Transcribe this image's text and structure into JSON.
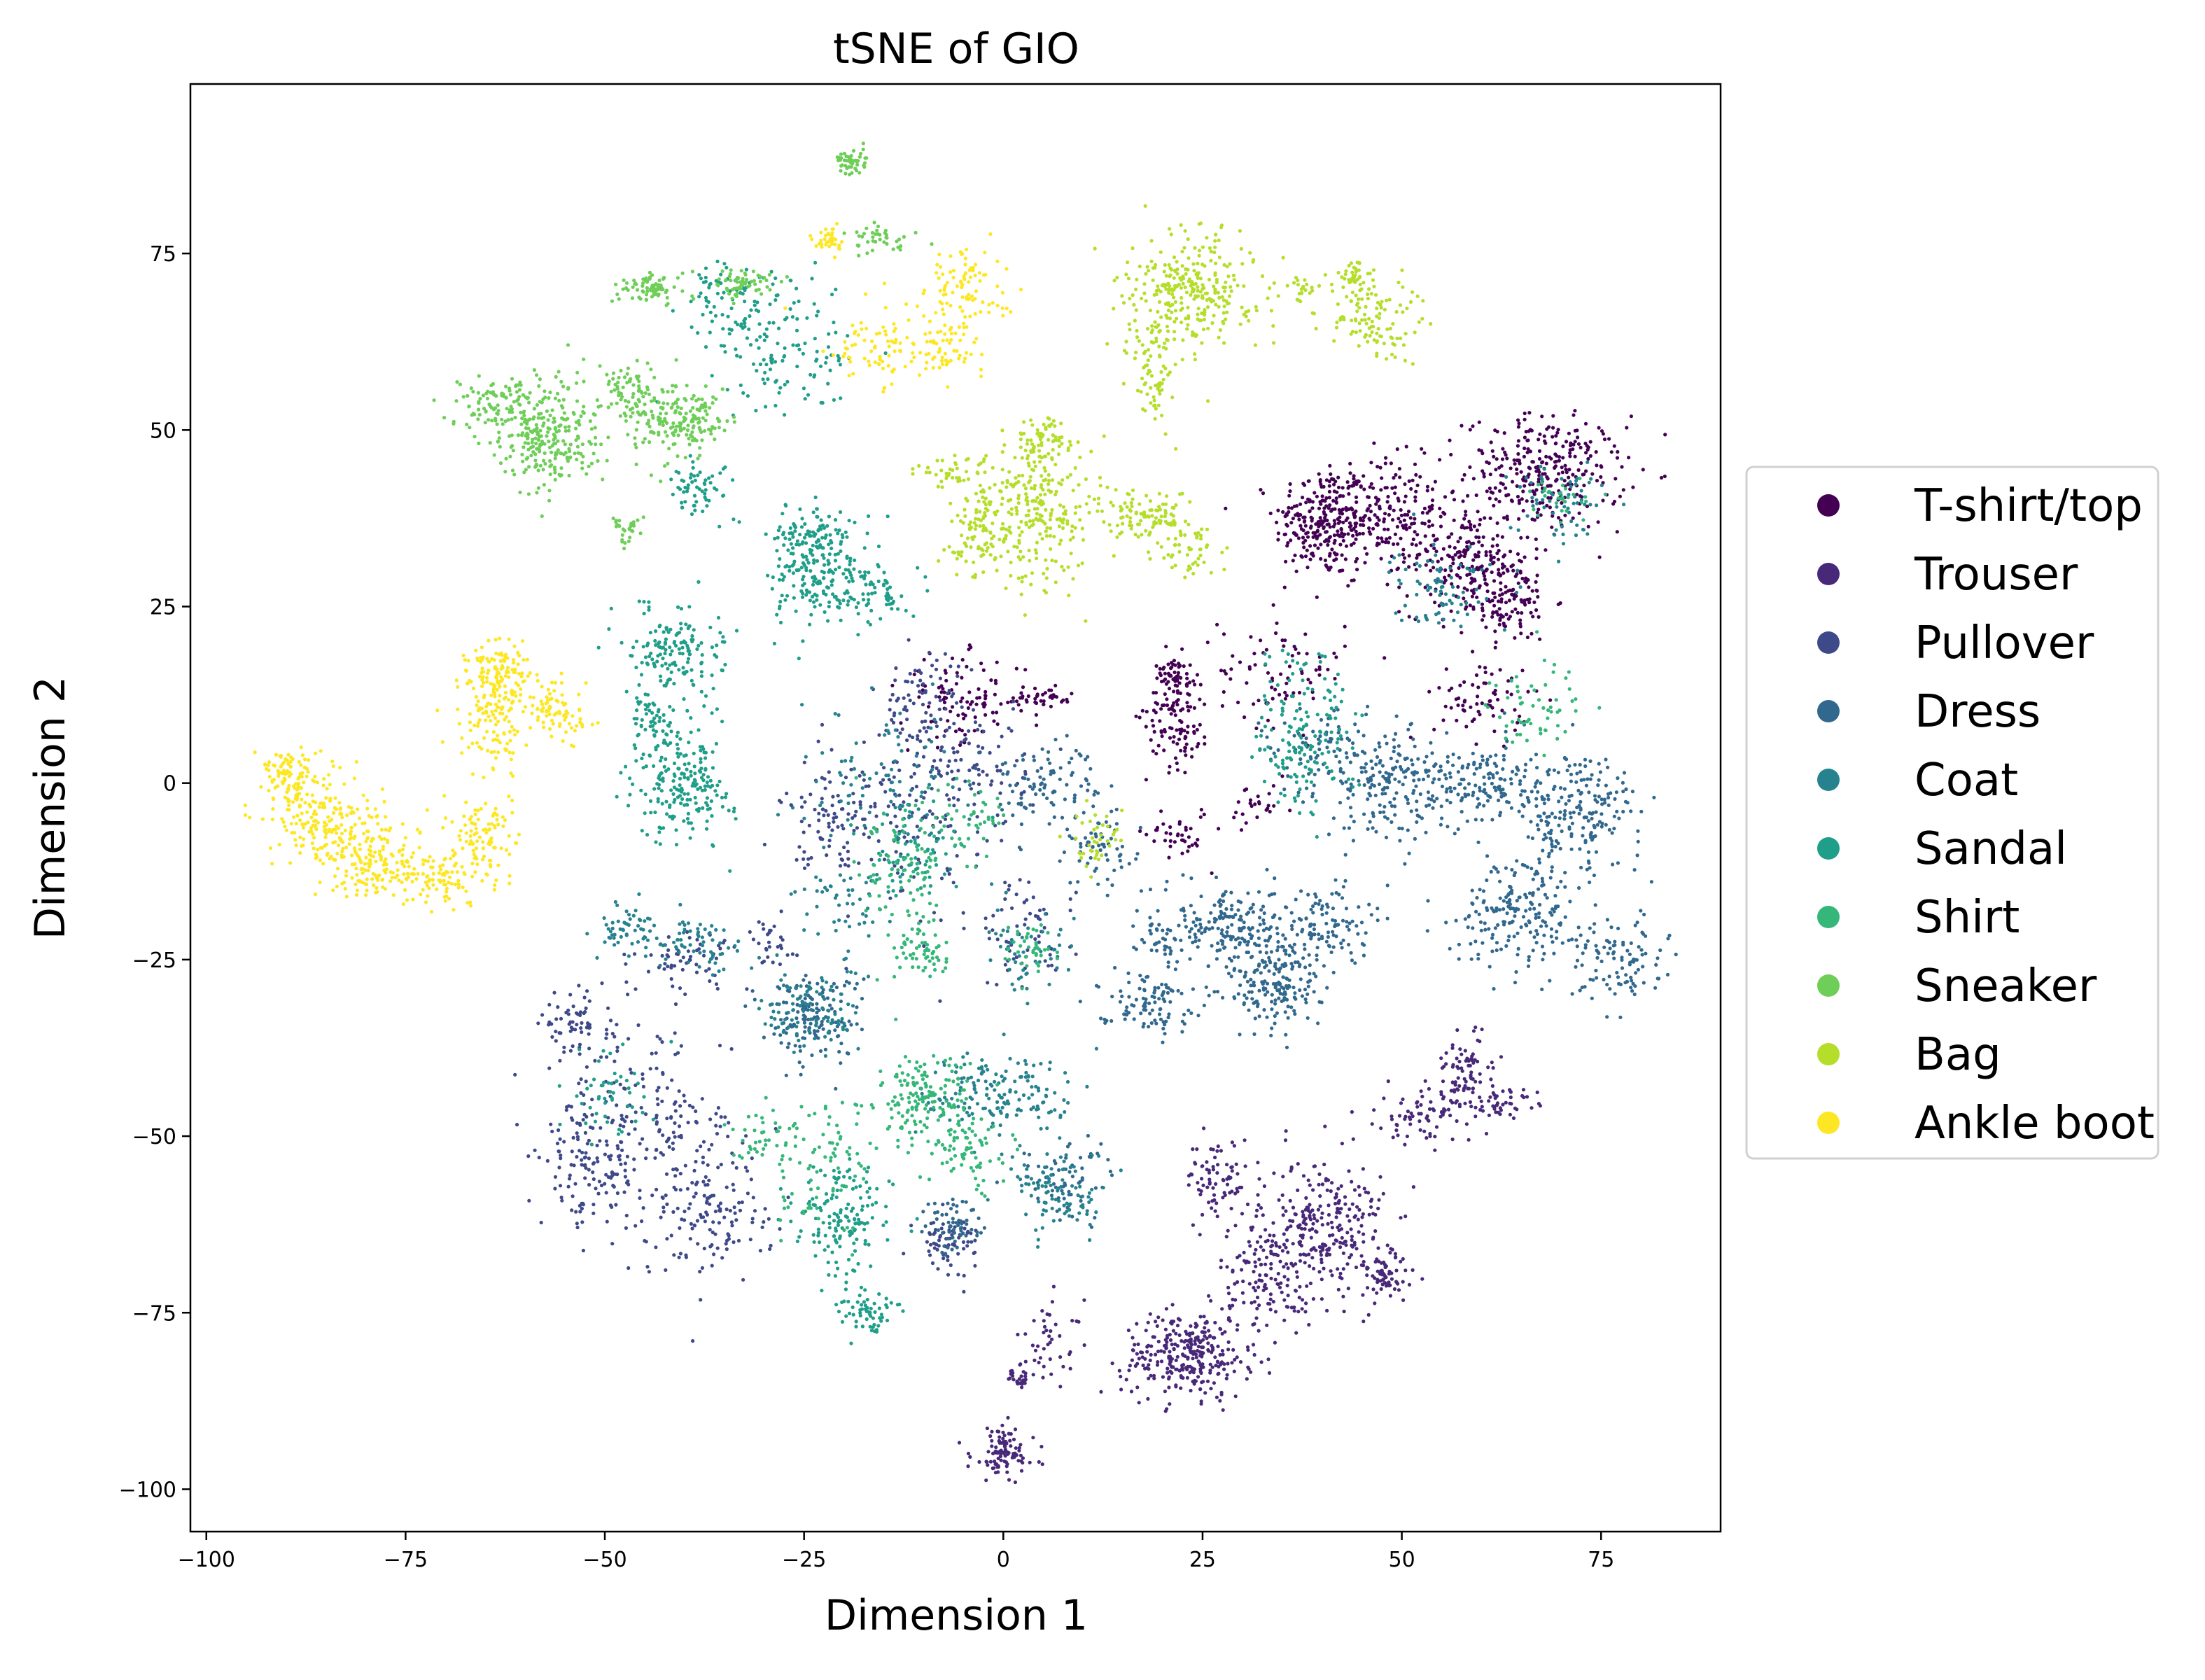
{
  "chart_data": {
    "type": "scatter",
    "title": "tSNE of GIO",
    "xlabel": "Dimension 1",
    "ylabel": "Dimension 2",
    "xlim": [
      -102,
      90
    ],
    "ylim": [
      -106,
      99
    ],
    "xticks": [
      -100,
      -75,
      -50,
      -25,
      0,
      25,
      50,
      75
    ],
    "yticks": [
      -100,
      -75,
      -50,
      -25,
      0,
      25,
      50,
      75
    ],
    "xtick_labels": [
      "−100",
      "−75",
      "−50",
      "−25",
      "0",
      "25",
      "50",
      "75"
    ],
    "ytick_labels": [
      "−100",
      "−75",
      "−50",
      "−25",
      "0",
      "25",
      "50",
      "75"
    ],
    "grid": false,
    "legend_position": "right-outside",
    "series": [
      {
        "name": "T-shirt/top",
        "color": "#440154",
        "clusters": [
          [
            40,
            37,
            3,
            4,
            220
          ],
          [
            47,
            38,
            4,
            4,
            220
          ],
          [
            68,
            44,
            5,
            4,
            300
          ],
          [
            58,
            32,
            4,
            4,
            200
          ],
          [
            63,
            26,
            3,
            3,
            120
          ],
          [
            22,
            10,
            2,
            4,
            120
          ],
          [
            21,
            15,
            1,
            2,
            40
          ],
          [
            35,
            16,
            4,
            4,
            80
          ],
          [
            -5,
            12,
            4,
            3,
            100
          ],
          [
            5,
            12,
            2,
            1,
            40
          ],
          [
            22,
            -7,
            2,
            2,
            40
          ],
          [
            60,
            12,
            3,
            3,
            70
          ],
          [
            32,
            -4,
            2,
            2,
            25
          ]
        ]
      },
      {
        "name": "Trouser",
        "color": "#482878",
        "clusters": [
          [
            27,
            -56,
            2,
            3,
            80
          ],
          [
            40,
            -63,
            4,
            5,
            280
          ],
          [
            33,
            -70,
            3,
            4,
            120
          ],
          [
            23,
            -81,
            4,
            3,
            300
          ],
          [
            48,
            -70,
            2,
            2,
            60
          ],
          [
            53,
            -47,
            3,
            2,
            80
          ],
          [
            58,
            -41,
            2,
            3,
            80
          ],
          [
            63,
            -45,
            2,
            1,
            40
          ],
          [
            0,
            -95,
            2,
            2,
            100
          ],
          [
            2,
            -84,
            1,
            1,
            30
          ],
          [
            6,
            -79,
            2,
            3,
            40
          ]
        ]
      },
      {
        "name": "Pullover",
        "color": "#3e4989",
        "clusters": [
          [
            -54,
            -34,
            2,
            2,
            60
          ],
          [
            -52,
            -55,
            3,
            4,
            100
          ],
          [
            -48,
            -47,
            5,
            6,
            120
          ],
          [
            -40,
            -55,
            5,
            7,
            150
          ],
          [
            -35,
            -62,
            3,
            3,
            70
          ],
          [
            -7,
            -65,
            2,
            2,
            70
          ],
          [
            -40,
            -25,
            3,
            2,
            60
          ],
          [
            -30,
            -22,
            2,
            2,
            30
          ],
          [
            -12,
            -5,
            6,
            8,
            150
          ],
          [
            -5,
            3,
            4,
            5,
            100
          ],
          [
            3,
            -22,
            3,
            4,
            60
          ],
          [
            -22,
            -5,
            3,
            3,
            60
          ],
          [
            -10,
            12,
            3,
            3,
            60
          ]
        ]
      },
      {
        "name": "Dress",
        "color": "#31688e",
        "clusters": [
          [
            48,
            0,
            4,
            4,
            200
          ],
          [
            72,
            -4,
            4,
            4,
            200
          ],
          [
            65,
            -18,
            4,
            4,
            200
          ],
          [
            77,
            -25,
            3,
            3,
            100
          ],
          [
            60,
            0,
            4,
            3,
            150
          ],
          [
            28,
            -20,
            3,
            3,
            150
          ],
          [
            34,
            -28,
            3,
            4,
            200
          ],
          [
            40,
            -20,
            3,
            3,
            120
          ],
          [
            18,
            -31,
            3,
            2,
            100
          ],
          [
            20,
            -21,
            2,
            2,
            40
          ],
          [
            5,
            0,
            4,
            3,
            100
          ],
          [
            12,
            -10,
            3,
            3,
            60
          ],
          [
            -24,
            -33,
            3,
            3,
            150
          ],
          [
            8,
            -56,
            3,
            3,
            60
          ],
          [
            -6,
            -63,
            2,
            2,
            60
          ],
          [
            38,
            5,
            3,
            3,
            60
          ]
        ]
      },
      {
        "name": "Coat",
        "color": "#26828e",
        "clusters": [
          [
            -24,
            -32,
            3,
            3,
            100
          ],
          [
            0,
            -44,
            5,
            3,
            160
          ],
          [
            7,
            -58,
            3,
            3,
            100
          ],
          [
            -47,
            -21,
            2,
            2,
            60
          ],
          [
            -38,
            -23,
            3,
            2,
            60
          ],
          [
            55,
            28,
            3,
            3,
            80
          ],
          [
            70,
            40,
            3,
            3,
            60
          ],
          [
            -15,
            0,
            5,
            5,
            100
          ],
          [
            4,
            -25,
            3,
            3,
            50
          ],
          [
            -20,
            -18,
            3,
            3,
            50
          ]
        ]
      },
      {
        "name": "Sandal",
        "color": "#1f9e89",
        "clusters": [
          [
            -23,
            30,
            3,
            4,
            200
          ],
          [
            -16,
            27,
            2,
            2,
            60
          ],
          [
            -25,
            36,
            2,
            2,
            60
          ],
          [
            -41,
            19,
            3,
            3,
            150
          ],
          [
            -40,
            0,
            3,
            4,
            200
          ],
          [
            -44,
            9,
            2,
            3,
            60
          ],
          [
            -38,
            42,
            2,
            2,
            60
          ],
          [
            -28,
            62,
            5,
            5,
            150
          ],
          [
            -35,
            70,
            2,
            2,
            50
          ],
          [
            -20,
            -62,
            3,
            4,
            150
          ],
          [
            -17,
            -75,
            2,
            2,
            60
          ],
          [
            37,
            10,
            3,
            6,
            100
          ],
          [
            38,
            3,
            3,
            3,
            60
          ],
          [
            -50,
            -44,
            3,
            3,
            50
          ],
          [
            -11,
            -10,
            3,
            3,
            60
          ]
        ]
      },
      {
        "name": "Shirt",
        "color": "#35b779",
        "clusters": [
          [
            -10,
            -45,
            3,
            3,
            150
          ],
          [
            -5,
            -52,
            3,
            3,
            80
          ],
          [
            -12,
            -12,
            3,
            4,
            80
          ],
          [
            -10,
            -24,
            2,
            2,
            60
          ],
          [
            -22,
            -55,
            3,
            5,
            80
          ],
          [
            -30,
            -50,
            2,
            2,
            40
          ],
          [
            3,
            -23,
            2,
            2,
            40
          ],
          [
            -5,
            -5,
            3,
            3,
            50
          ],
          [
            67,
            12,
            3,
            3,
            60
          ],
          [
            70,
            40,
            2,
            2,
            30
          ]
        ]
      },
      {
        "name": "Sneaker",
        "color": "#6ece58",
        "clusters": [
          [
            -57,
            49,
            3,
            4,
            250
          ],
          [
            -64,
            53,
            3,
            2,
            100
          ],
          [
            -43,
            52,
            3,
            3,
            120
          ],
          [
            -38,
            51,
            2,
            2,
            80
          ],
          [
            -47,
            56,
            2,
            2,
            60
          ],
          [
            -44,
            70,
            2,
            1,
            80
          ],
          [
            -33,
            71,
            2,
            1,
            60
          ],
          [
            -19,
            88,
            1,
            1,
            50
          ],
          [
            -47,
            36,
            1,
            1,
            30
          ],
          [
            -15,
            77,
            2,
            1,
            40
          ]
        ]
      },
      {
        "name": "Bag",
        "color": "#b5de2b",
        "clusters": [
          [
            24,
            70,
            4,
            4,
            280
          ],
          [
            19,
            62,
            2,
            4,
            60
          ],
          [
            19,
            55,
            1,
            2,
            30
          ],
          [
            4,
            38,
            4,
            5,
            250
          ],
          [
            5,
            48,
            2,
            2,
            80
          ],
          [
            -3,
            35,
            2,
            3,
            80
          ],
          [
            -7,
            44,
            2,
            1,
            40
          ],
          [
            18,
            38,
            3,
            2,
            100
          ],
          [
            23,
            33,
            2,
            2,
            50
          ],
          [
            46,
            66,
            3,
            3,
            120
          ],
          [
            44,
            72,
            1,
            1,
            30
          ],
          [
            38,
            70,
            1,
            1,
            20
          ],
          [
            12,
            -8,
            2,
            2,
            40
          ]
        ]
      },
      {
        "name": "Ankle boot",
        "color": "#fde725",
        "clusters": [
          [
            -64,
            10,
            2,
            4,
            150
          ],
          [
            -63,
            16,
            2,
            2,
            80
          ],
          [
            -56,
            10,
            2,
            2,
            80
          ],
          [
            -90,
            1,
            2,
            2,
            100
          ],
          [
            -86,
            -5,
            3,
            3,
            150
          ],
          [
            -80,
            -10,
            3,
            3,
            150
          ],
          [
            -72,
            -13,
            3,
            2,
            120
          ],
          [
            -65,
            -8,
            2,
            3,
            100
          ],
          [
            -5,
            70,
            3,
            3,
            100
          ],
          [
            -7,
            61,
            2,
            2,
            60
          ],
          [
            -22,
            77,
            1,
            1,
            40
          ],
          [
            -17,
            61,
            3,
            3,
            70
          ]
        ]
      }
    ]
  }
}
